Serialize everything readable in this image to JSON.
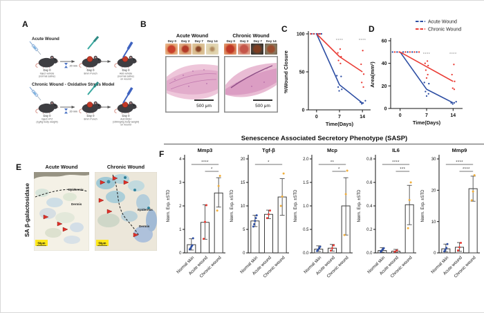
{
  "panelA": {
    "label": "A",
    "interval": "20 min",
    "acute": {
      "title": "Acute Wound",
      "steps": [
        {
          "day": "Day 0",
          "lines": [
            "Inject vehicle",
            "(normal saline)"
          ]
        },
        {
          "day": "Day 0",
          "lines": [
            "8mm Punch"
          ]
        },
        {
          "day": "Day 0",
          "lines": [
            "Add vehicle",
            "(normal saline)",
            "on wound"
          ]
        }
      ]
    },
    "chronic": {
      "title": "Chronic Wound - Oxidative Stress Model",
      "steps": [
        {
          "day": "Day 0",
          "lines": [
            "Inject HTZ",
            "(1g/kg body weight)"
          ]
        },
        {
          "day": "Day 0",
          "lines": [
            "8mm Punch"
          ]
        },
        {
          "day": "Day 0",
          "lines": [
            "Add MQH",
            "(150mg/kg body weight)",
            "on wound"
          ]
        }
      ]
    }
  },
  "panelB": {
    "label": "B",
    "columns": [
      {
        "title": "Acute Wound",
        "days": [
          "Day 0",
          "Day 2",
          "Day 7",
          "Day 14"
        ],
        "scale": "500 μm"
      },
      {
        "title": "Chronic Wound",
        "days": [
          "Day 0",
          "Day 2",
          "Day 7",
          "Day 14"
        ],
        "scale": "500 μm"
      }
    ]
  },
  "panelC": {
    "label": "C"
  },
  "panelD": {
    "label": "D"
  },
  "panelE": {
    "label": "E",
    "side_label": "SA β-galactosidase",
    "columns": [
      {
        "title": "Acute Wound",
        "region_labels": [
          "Epidermis",
          "Dermis"
        ],
        "scale": "50μm"
      },
      {
        "title": "Chronic Wound",
        "region_labels": [
          "Epidermis",
          "Dermis"
        ],
        "scale": "50μm"
      }
    ]
  },
  "panelF": {
    "label": "F",
    "title": "Senescence Associated Secretory Phenotype (SASP)",
    "ylabel": "Norm. Exp. ±STD",
    "categories": [
      "Normal skin",
      "Acute wound",
      "Chronic wound"
    ],
    "point_colors": [
      "#2d4ea3",
      "#ea3b34",
      "#f1af3c"
    ]
  },
  "chart_data": {
    "panelC": {
      "type": "line",
      "ylabel": "%Wound Closure",
      "xlabel": "Time(Days)",
      "ylim": [
        0,
        100
      ],
      "yticks": [
        0,
        50,
        100
      ],
      "xlim": [
        -2.5,
        16.5
      ],
      "xticks": [
        0,
        7,
        14
      ],
      "legend": false,
      "series": [
        {
          "name": "Acute Wound",
          "color": "#2d4ea3",
          "x": [
            0,
            7,
            14
          ],
          "y": [
            100,
            33,
            9
          ]
        },
        {
          "name": "Chronic Wound",
          "color": "#ea3b34",
          "x": [
            0,
            7,
            14
          ],
          "y": [
            100,
            70,
            50
          ]
        }
      ],
      "scatter": [
        {
          "series": 0,
          "x": 0,
          "values": [
            100,
            100,
            100,
            100,
            100
          ],
          "jitter": [
            -1.5,
            -0.75,
            0,
            0.75,
            1.5
          ]
        },
        {
          "series": 1,
          "x": 0,
          "values": [
            100,
            100,
            100,
            100
          ],
          "jitter": [
            -1.8,
            -0.9,
            0.3,
            1.1
          ]
        },
        {
          "series": 0,
          "x": 7,
          "values": [
            45,
            44,
            30,
            27,
            25
          ],
          "jitter": [
            -0.8,
            0.5,
            -0.4,
            0.7,
            -0.1
          ]
        },
        {
          "series": 1,
          "x": 7,
          "values": [
            80,
            75,
            70,
            65,
            61
          ],
          "jitter": [
            0.2,
            -0.5,
            0.5,
            -0.3,
            0.3
          ]
        },
        {
          "series": 0,
          "x": 14,
          "values": [
            12,
            10,
            9,
            8
          ],
          "jitter": [
            0.9,
            -0.6,
            0.2,
            -0.2
          ]
        },
        {
          "series": 1,
          "x": 14,
          "values": [
            78,
            60,
            47,
            36,
            30
          ],
          "jitter": [
            0.1,
            -0.4,
            0.4,
            -0.2,
            0.3
          ]
        }
      ],
      "sig": [
        {
          "x": 7,
          "y": 90,
          "label": "****"
        },
        {
          "x": 14,
          "y": 90,
          "label": "****"
        }
      ]
    },
    "panelD": {
      "type": "line",
      "ylabel": "Area(mm²)",
      "xlabel": "Time(Days)",
      "ylim": [
        0,
        60
      ],
      "yticks": [
        0,
        20,
        40,
        60
      ],
      "xlim": [
        -2.5,
        16.5
      ],
      "xticks": [
        0,
        7,
        14
      ],
      "legend": true,
      "series": [
        {
          "name": "Acute Wound",
          "color": "#2d4ea3",
          "x": [
            0,
            7,
            14
          ],
          "y": [
            50,
            17,
            5
          ]
        },
        {
          "name": "Chronic Wound",
          "color": "#ea3b34",
          "x": [
            0,
            7,
            14
          ],
          "y": [
            50,
            37,
            24
          ]
        }
      ],
      "scatter": [
        {
          "series": 0,
          "x": 0,
          "values": [
            50,
            50,
            50,
            50,
            50,
            50
          ],
          "jitter": [
            -2,
            -0.8,
            0.8,
            2,
            3.2,
            4.4
          ]
        },
        {
          "series": 1,
          "x": 0,
          "values": [
            50,
            50,
            50,
            50,
            50,
            50
          ],
          "jitter": [
            -1.4,
            -0.2,
            1.4,
            2.6,
            3.8,
            5
          ]
        },
        {
          "series": 0,
          "x": 7,
          "values": [
            23,
            22,
            15,
            13,
            11
          ],
          "jitter": [
            -0.6,
            0.6,
            -0.3,
            0.5,
            0
          ]
        },
        {
          "series": 1,
          "x": 7,
          "values": [
            42,
            40,
            38,
            34,
            30,
            27
          ],
          "jitter": [
            0.2,
            -0.4,
            0.4,
            -0.2,
            0.3,
            0
          ]
        },
        {
          "series": 0,
          "x": 14,
          "values": [
            6,
            5,
            5,
            4
          ],
          "jitter": [
            0.8,
            -0.5,
            0.3,
            -0.1
          ]
        },
        {
          "series": 1,
          "x": 14,
          "values": [
            39,
            30,
            24,
            18,
            17
          ],
          "jitter": [
            0.2,
            -0.3,
            0.4,
            -0.1,
            0.3
          ]
        }
      ],
      "sig": [
        {
          "x": 7,
          "y": 47,
          "label": "****"
        },
        {
          "x": 14,
          "y": 47,
          "label": "****"
        }
      ]
    },
    "sasp": [
      {
        "type": "bar",
        "gene": "Mmp3",
        "ylim": [
          0,
          4
        ],
        "yticks": [
          "0",
          "1",
          "2",
          "3",
          "4"
        ],
        "values": [
          0.35,
          1.3,
          2.55
        ],
        "err_lo": [
          0.12,
          0.58,
          1.95
        ],
        "err_hi": [
          0.6,
          2.05,
          3.2
        ],
        "points": [
          [
            0.15,
            0.2,
            0.27,
            0.32,
            0.62
          ],
          [
            0.6,
            1.32,
            2.03
          ],
          [
            1.8,
            2.85,
            3.28
          ]
        ],
        "sig": [
          {
            "from": 0,
            "to": 2,
            "label": "****"
          },
          {
            "from": 1,
            "to": 2,
            "label": "*"
          }
        ]
      },
      {
        "type": "bar",
        "gene": "Tgf-β",
        "ylim": [
          0,
          20
        ],
        "yticks": [
          "0",
          "5",
          "10",
          "15",
          "20"
        ],
        "values": [
          6.8,
          8.2,
          11.9
        ],
        "err_lo": [
          5.6,
          7.3,
          8.0
        ],
        "err_hi": [
          8.0,
          9.1,
          15.8
        ],
        "points": [
          [
            5.6,
            6.1,
            6.8,
            7.4,
            8.0
          ],
          [
            7.4,
            8.2,
            9.0
          ],
          [
            10.0,
            12.0,
            16.9
          ]
        ],
        "sig": [
          {
            "from": 0,
            "to": 2,
            "label": "*"
          }
        ]
      },
      {
        "type": "bar",
        "gene": "Mcp",
        "ylim": [
          0,
          2
        ],
        "yticks": [
          "0.0",
          "0.5",
          "1.0",
          "1.5",
          "2.0"
        ],
        "values": [
          0.08,
          0.1,
          1.0
        ],
        "err_lo": [
          0.03,
          0.04,
          0.38
        ],
        "err_hi": [
          0.15,
          0.18,
          1.6
        ],
        "points": [
          [
            0.04,
            0.07,
            0.1,
            0.13
          ],
          [
            0.05,
            0.1,
            0.16
          ],
          [
            0.38,
            1.25,
            1.75
          ]
        ],
        "sig": [
          {
            "from": 0,
            "to": 2,
            "label": "**"
          },
          {
            "from": 1,
            "to": 2,
            "label": "*"
          }
        ]
      },
      {
        "type": "bar",
        "gene": "IL6",
        "ylim": [
          0,
          0.8
        ],
        "yticks": [
          "0.0",
          "0.2",
          "0.4",
          "0.6",
          "0.8"
        ],
        "values": [
          0.02,
          0.015,
          0.41
        ],
        "err_lo": [
          0.005,
          0.005,
          0.24
        ],
        "err_hi": [
          0.045,
          0.03,
          0.575
        ],
        "points": [
          [
            0.01,
            0.02,
            0.03,
            0.04
          ],
          [
            0.01,
            0.02
          ],
          [
            0.21,
            0.45,
            0.6
          ]
        ],
        "sig": [
          {
            "from": 0,
            "to": 2,
            "label": "****"
          },
          {
            "from": 1,
            "to": 2,
            "label": "***"
          }
        ]
      },
      {
        "type": "bar",
        "gene": "Mmp9",
        "ylim": [
          0,
          30
        ],
        "yticks": [
          "0",
          "10",
          "20",
          "30"
        ],
        "values": [
          1.3,
          1.8,
          20.5
        ],
        "err_lo": [
          0.3,
          0.5,
          16.5
        ],
        "err_hi": [
          2.8,
          3.3,
          24.5
        ],
        "points": [
          [
            0.5,
            1.0,
            1.6,
            2.8
          ],
          [
            0.8,
            1.8,
            3.2
          ],
          [
            16.8,
            19.6,
            24.8
          ]
        ],
        "sig": [
          {
            "from": 0,
            "to": 2,
            "label": "****"
          },
          {
            "from": 1,
            "to": 2,
            "label": "****"
          }
        ]
      }
    ]
  }
}
